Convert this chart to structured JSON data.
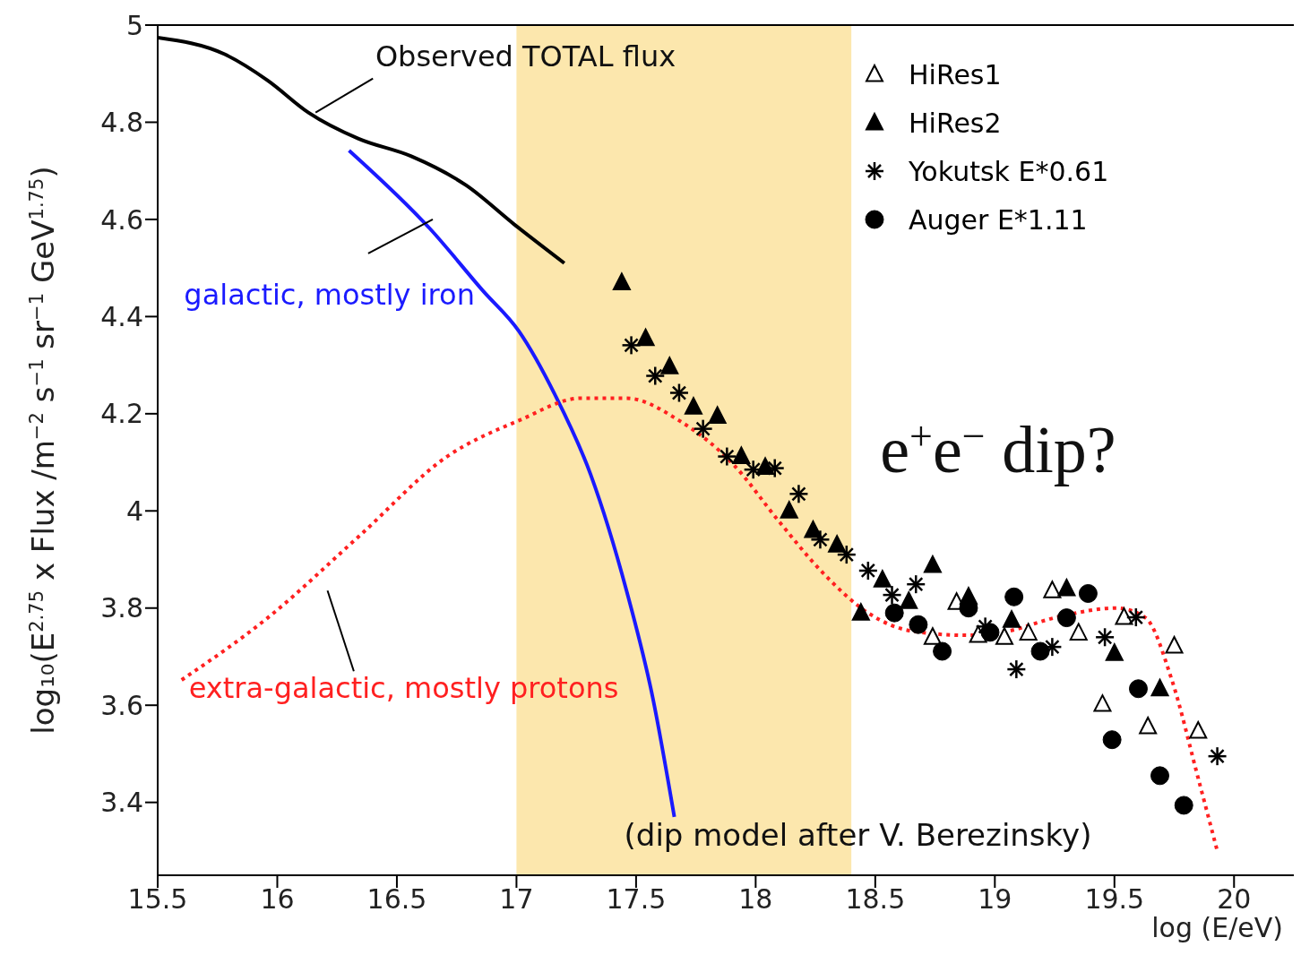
{
  "chart_data": {
    "type": "scatter",
    "xlabel": "log (E/eV)",
    "ylabel": "log₁₀(E$^{2.75}$ x Flux /m$^{−2}$ s$^{−1}$ sr$^{−1}$ GeV$^{1.75}$)",
    "xlim": [
      15.5,
      20.25
    ],
    "xticks": [
      15.5,
      16,
      16.5,
      17,
      17.5,
      18,
      18.5,
      19,
      19.5,
      20
    ],
    "ylim": [
      3.25,
      5
    ],
    "yticks": [
      3.4,
      3.6,
      3.8,
      4,
      4.2,
      4.4,
      4.6,
      4.8,
      5
    ],
    "grid": false,
    "legend": "top right",
    "bands": [
      {
        "axis": "x",
        "from": 17,
        "to": 18.4,
        "color": "#fce7ad"
      }
    ],
    "annotations": [
      "(dip model after V. Berezinsky)",
      "e$^{+}$e$^{−}$ dip?"
    ],
    "series": [
      {
        "type": "line",
        "name": "Observed TOTAL flux",
        "color": "#000000",
        "line_style": "solid",
        "x": [
          15.5,
          15.78,
          15.96,
          16.13,
          16.34,
          16.56,
          16.79,
          16.99,
          17.2
        ],
        "values": [
          4.974,
          4.94,
          4.886,
          4.82,
          4.766,
          4.73,
          4.67,
          4.59,
          4.51
        ]
      },
      {
        "type": "line",
        "name": "galactic, mostly iron",
        "color": "#1a1aff",
        "line_style": "solid",
        "x": [
          16.3,
          16.64,
          16.86,
          17.01,
          17.16,
          17.31,
          17.46,
          17.57,
          17.66
        ],
        "values": [
          4.742,
          4.58,
          4.453,
          4.37,
          4.24,
          4.075,
          3.836,
          3.615,
          3.37
        ]
      },
      {
        "type": "line",
        "name": "extra-galactic, mostly protons",
        "color": "#ff2020",
        "line_style": "dotted",
        "x": [
          15.6,
          15.96,
          16.34,
          16.71,
          17.01,
          17.27,
          17.46,
          17.68,
          17.91,
          18.09,
          18.28,
          18.47,
          18.65,
          18.88,
          19.06,
          19.25,
          19.51,
          19.63,
          19.74,
          19.85,
          19.93
        ],
        "values": [
          3.652,
          3.78,
          3.947,
          4.112,
          4.186,
          4.232,
          4.232,
          4.186,
          4.094,
          3.983,
          3.873,
          3.79,
          3.753,
          3.744,
          3.753,
          3.78,
          3.8,
          3.78,
          3.652,
          3.45,
          3.3
        ]
      },
      {
        "type": "scatter",
        "name": "HiRes1",
        "color": "#ffffff",
        "marker": "triangle",
        "x": [
          18.74,
          18.84,
          18.93,
          19.04,
          19.14,
          19.24,
          19.35,
          19.45,
          19.54,
          19.64,
          19.75,
          19.85
        ],
        "values": [
          3.74,
          3.812,
          3.744,
          3.74,
          3.749,
          3.836,
          3.749,
          3.602,
          3.781,
          3.556,
          3.722,
          3.547
        ]
      },
      {
        "type": "scatter",
        "name": "HiRes2",
        "color": "#000000",
        "marker": "triangle",
        "x": [
          17.44,
          17.54,
          17.64,
          17.74,
          17.84,
          17.94,
          18.04,
          18.14,
          18.24,
          18.34,
          18.44,
          18.53,
          18.64,
          18.74,
          18.89,
          19.07,
          19.3,
          19.5,
          19.69
        ],
        "values": [
          4.47,
          4.355,
          4.297,
          4.214,
          4.195,
          4.112,
          4.09,
          4.0,
          3.96,
          3.93,
          3.79,
          3.858,
          3.814,
          3.888,
          3.823,
          3.775,
          3.84,
          3.707,
          3.634
        ]
      },
      {
        "type": "scatter",
        "name": "Yokutsk E*0.61",
        "color": "#000000",
        "marker": "cross",
        "x": [
          17.48,
          17.58,
          17.68,
          17.78,
          17.88,
          17.99,
          18.08,
          18.18,
          18.27,
          18.38,
          18.47,
          18.57,
          18.67,
          18.96,
          19.09,
          19.24,
          19.46,
          19.59,
          19.93
        ],
        "values": [
          4.341,
          4.278,
          4.243,
          4.169,
          4.112,
          4.085,
          4.088,
          4.035,
          3.941,
          3.91,
          3.877,
          3.827,
          3.849,
          3.762,
          3.674,
          3.72,
          3.74,
          3.781,
          3.495
        ]
      },
      {
        "type": "scatter",
        "name": "Auger E*1.11",
        "color": "#000000",
        "marker": "circle",
        "x": [
          18.58,
          18.68,
          18.78,
          18.89,
          18.98,
          19.08,
          19.19,
          19.3,
          19.39,
          19.49,
          19.6,
          19.69,
          19.79
        ],
        "values": [
          3.79,
          3.766,
          3.711,
          3.8,
          3.75,
          3.823,
          3.711,
          3.78,
          3.83,
          3.529,
          3.634,
          3.455,
          3.394
        ]
      }
    ]
  }
}
